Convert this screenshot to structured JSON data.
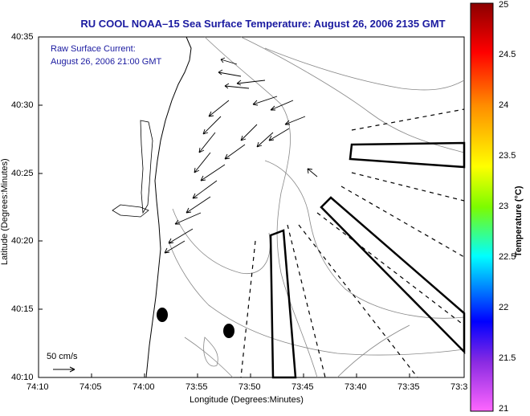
{
  "title": "RU COOL  NOAA–15  Sea Surface Temperature:  August 26, 2006 2135 GMT",
  "legend": {
    "line1": "Raw Surface Current:",
    "line2": "August 26, 2006 21:00 GMT",
    "scale_label": "50 cm/s"
  },
  "axes": {
    "xlabel": "Longitude (Degrees:Minutes)",
    "ylabel": "Latitude (Degrees:Minutes)",
    "x_ticks": [
      "74:10",
      "74:05",
      "74:00",
      "73:55",
      "73:50",
      "73:45",
      "73:40",
      "73:35",
      "73:3"
    ],
    "y_ticks": [
      "40:35",
      "40:30",
      "40:25",
      "40:20",
      "40:15",
      "40:10"
    ]
  },
  "colorbar": {
    "label": "Temperature (°C)",
    "ticks": [
      "25",
      "24.5",
      "24",
      "23.5",
      "23",
      "22.5",
      "22",
      "21.5",
      "21"
    ],
    "colors": [
      "#8b0000",
      "#ff0000",
      "#ff8c00",
      "#ffff00",
      "#7cfc00",
      "#00ffff",
      "#0000ff",
      "#8a2be2",
      "#ff00ff"
    ]
  }
}
